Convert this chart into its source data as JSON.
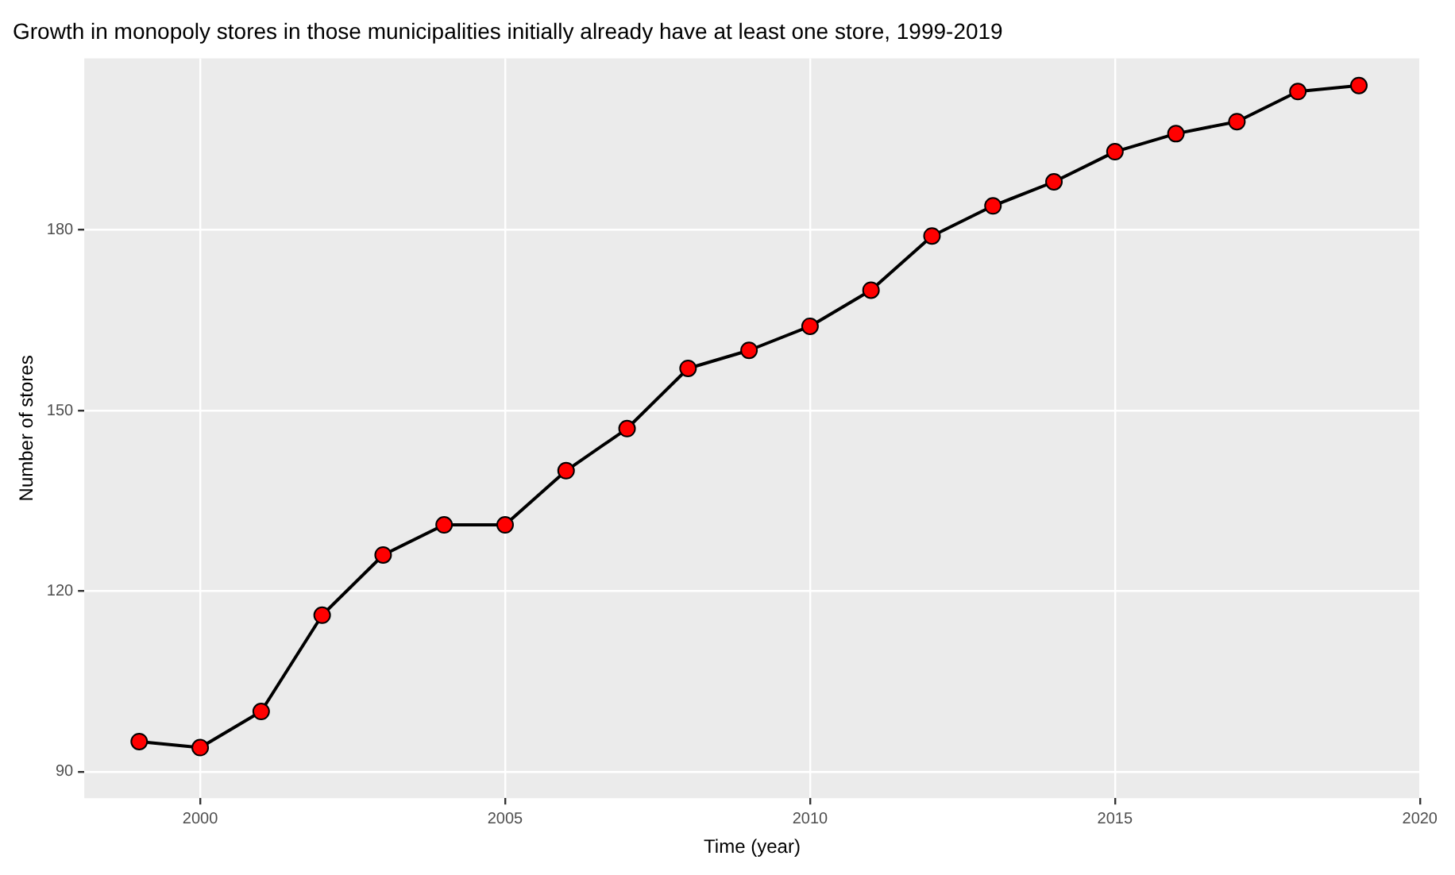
{
  "chart_data": {
    "type": "line",
    "title": "Growth in monopoly stores in those municipalities initially already have at least one store, 1999-2019",
    "xlabel": "Time (year)",
    "ylabel": "Number of stores",
    "x": [
      1999,
      2000,
      2001,
      2002,
      2003,
      2004,
      2005,
      2006,
      2007,
      2008,
      2009,
      2010,
      2011,
      2012,
      2013,
      2014,
      2015,
      2016,
      2017,
      2018,
      2019
    ],
    "series": [
      {
        "color": "#000000",
        "values": [
          95,
          94,
          100,
          116,
          126,
          131,
          131,
          140,
          147,
          157,
          160,
          164,
          170,
          179,
          184,
          188,
          193,
          196,
          198,
          203,
          204
        ]
      }
    ],
    "xlim": [
      1998.1,
      2020
    ],
    "xticks": [
      2000,
      2005,
      2010,
      2015,
      2020
    ],
    "ylim": [
      85.6,
      208.5
    ],
    "yticks": [
      90,
      120,
      150,
      180
    ],
    "grid": true,
    "legend": false,
    "marker": "circle",
    "line_style": "solid"
  }
}
